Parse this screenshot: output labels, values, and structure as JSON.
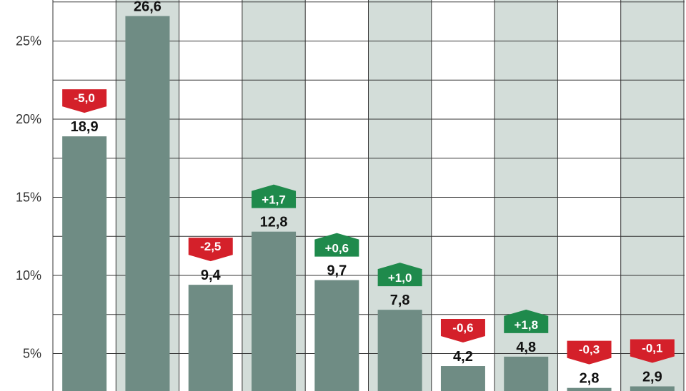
{
  "chart_data": {
    "type": "bar",
    "title": "",
    "xlabel": "",
    "ylabel": "",
    "ylim": [
      0,
      31
    ],
    "yticks": [
      5,
      10,
      15,
      20,
      25
    ],
    "ytick_labels": [
      "5%",
      "10%",
      "15%",
      "20%",
      "25%"
    ],
    "grid": true,
    "values": [
      18.9,
      26.6,
      9.4,
      12.8,
      9.7,
      7.8,
      4.2,
      4.8,
      2.8,
      2.9
    ],
    "value_labels": [
      "18,9",
      "26,6",
      "9,4",
      "12,8",
      "9,7",
      "7,8",
      "4,2",
      "4,8",
      "2,8",
      "2,9"
    ],
    "changes": [
      -5.0,
      null,
      -2.5,
      1.7,
      0.6,
      1.0,
      -0.6,
      1.8,
      -0.3,
      -0.1
    ],
    "change_labels": [
      "-5,0",
      "",
      "-2,5",
      "+1,7",
      "+0,6",
      "+1,0",
      "-0,6",
      "+1,8",
      "-0,3",
      "-0,1"
    ],
    "colors": {
      "bar": "#6f8c84",
      "column_band": "#d3ddd9",
      "gridline": "#333333",
      "negative": "#d4202a",
      "positive": "#1f8a4c"
    }
  }
}
